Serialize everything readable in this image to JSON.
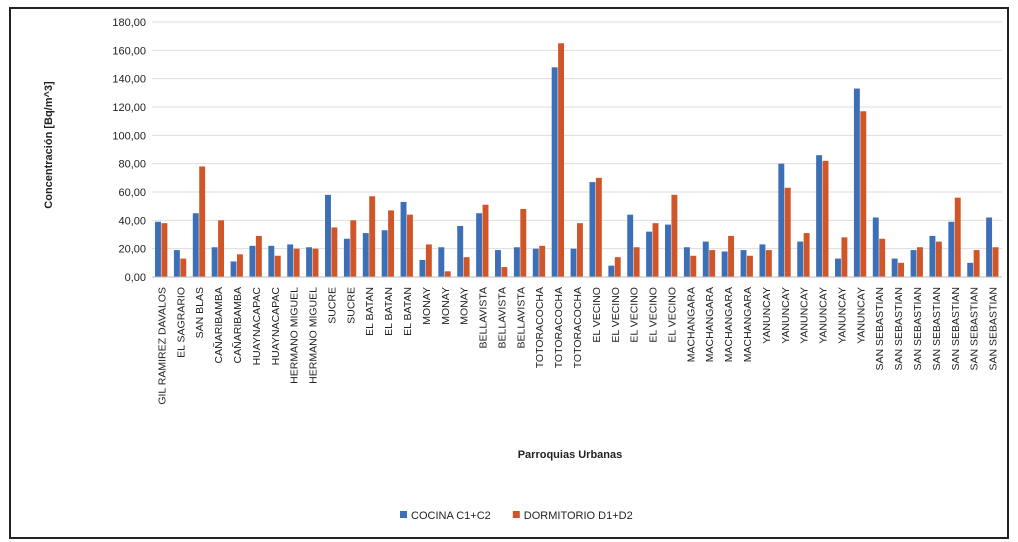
{
  "chart_data": {
    "type": "bar",
    "categories": [
      "GIL RAMIREZ DAVALOS",
      "EL SAGRARIO",
      "SAN BLAS",
      "CAÑARIBAMBA",
      "CAÑARIBAMBA",
      "HUAYNACAPAC",
      "HUAYNACAPAC",
      "HERMANO MIGUEL",
      "HERMANO MIGUEL",
      "SUCRE",
      "SUCRE",
      "EL BATAN",
      "EL BATAN",
      "EL BATAN",
      "MONAY",
      "MONAY",
      "MONAY",
      "BELLAVISTA",
      "BELLAVISTA",
      "BELLAVISTA",
      "TOTORACOCHA",
      "TOTORACOCHA",
      "TOTORACOCHA",
      "EL VECINO",
      "EL VECINO",
      "EL VECINO",
      "EL VECINO",
      "EL VECINO",
      "MACHANGARA",
      "MACHANGARA",
      "MACHANGARA",
      "MACHANGARA",
      "YANUNCAY",
      "YANUNCAY",
      "YANUNCAY",
      "YANUNCAY",
      "YANUNCAY",
      "YANUNCAY",
      "SAN SEBASTIAN",
      "SAN SEBASTIAN",
      "SAN SEBASTIAN",
      "SAN SEBASTIAN",
      "SAN SEBASTIAN",
      "SAN SEBASTIAN",
      "SAN SEBASTIAN"
    ],
    "series": [
      {
        "name": "COCINA C1+C2",
        "color": "#3d6fb6",
        "values": [
          39,
          19,
          45,
          21,
          11,
          22,
          22,
          23,
          21,
          58,
          27,
          31,
          33,
          53,
          12,
          21,
          36,
          45,
          19,
          21,
          20,
          148,
          20,
          67,
          8,
          44,
          32,
          37,
          21,
          25,
          18,
          19,
          23,
          80,
          25,
          86,
          13,
          133,
          42,
          13,
          19,
          29,
          39,
          10,
          42
        ]
      },
      {
        "name": "DORMITORIO D1+D2",
        "color": "#d0562a",
        "values": [
          38,
          13,
          78,
          40,
          16,
          29,
          15,
          20,
          20,
          35,
          40,
          57,
          47,
          44,
          23,
          4,
          14,
          51,
          7,
          48,
          22,
          165,
          38,
          70,
          14,
          21,
          38,
          58,
          15,
          19,
          29,
          15,
          19,
          63,
          31,
          82,
          28,
          117,
          27,
          10,
          21,
          25,
          56,
          19,
          21
        ]
      }
    ],
    "xlabel": "Parroquias Urbanas",
    "ylabel": "Concentración [Bq/m^3]",
    "ylim": [
      0,
      180
    ],
    "yticks": [
      {
        "value": 0,
        "label": "0,00"
      },
      {
        "value": 20,
        "label": "20,00"
      },
      {
        "value": 40,
        "label": "40,00"
      },
      {
        "value": 60,
        "label": "60,00"
      },
      {
        "value": 80,
        "label": "80,00"
      },
      {
        "value": 100,
        "label": "100,00"
      },
      {
        "value": 120,
        "label": "120,00"
      },
      {
        "value": 140,
        "label": "140,00"
      },
      {
        "value": 160,
        "label": "160,00"
      },
      {
        "value": 180,
        "label": "180,00"
      }
    ],
    "grid": true,
    "legend": "bottom"
  }
}
